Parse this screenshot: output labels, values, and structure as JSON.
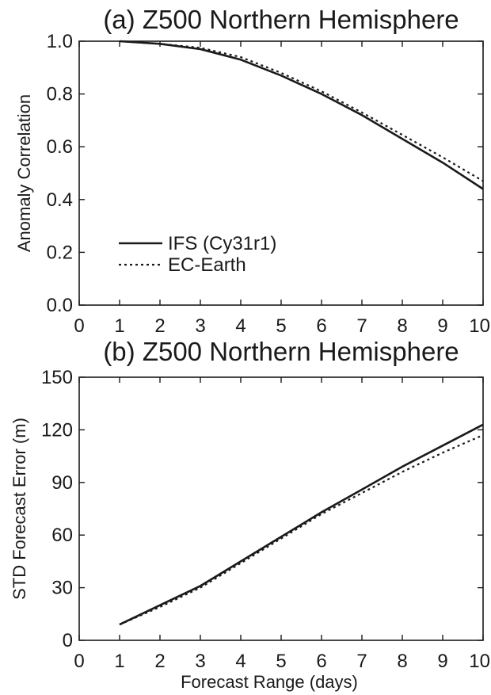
{
  "chart_data": [
    {
      "type": "line",
      "title": "(a) Z500 Northern Hemisphere",
      "xlabel": "",
      "ylabel": "Anomaly Correlation",
      "xlim": [
        0,
        10
      ],
      "ylim": [
        0.0,
        1.0
      ],
      "xticks": [
        0,
        1,
        2,
        3,
        4,
        5,
        6,
        7,
        8,
        9,
        10
      ],
      "xtick_labels": [
        "0",
        "1",
        "2",
        "3",
        "4",
        "5",
        "6",
        "7",
        "8",
        "9",
        "10"
      ],
      "yticks": [
        0.0,
        0.2,
        0.4,
        0.6,
        0.8,
        1.0
      ],
      "ytick_labels": [
        "0.0",
        "0.2",
        "0.4",
        "0.6",
        "0.8",
        "1.0"
      ],
      "grid": false,
      "legend": {
        "position": "bottom-left"
      },
      "x": [
        1,
        2,
        3,
        4,
        5,
        6,
        7,
        8,
        9,
        10
      ],
      "series": [
        {
          "name": "IFS (Cy31r1)",
          "style": "solid",
          "values": [
            1.0,
            0.99,
            0.97,
            0.93,
            0.87,
            0.8,
            0.72,
            0.63,
            0.54,
            0.44
          ]
        },
        {
          "name": "EC-Earth",
          "style": "dotted",
          "values": [
            1.0,
            0.99,
            0.975,
            0.94,
            0.88,
            0.81,
            0.73,
            0.645,
            0.56,
            0.47
          ]
        }
      ]
    },
    {
      "type": "line",
      "title": "(b) Z500 Northern Hemisphere",
      "xlabel": "Forecast Range (days)",
      "ylabel": "STD Forecast Error (m)",
      "xlim": [
        0,
        10
      ],
      "ylim": [
        0,
        150
      ],
      "xticks": [
        0,
        1,
        2,
        3,
        4,
        5,
        6,
        7,
        8,
        9,
        10
      ],
      "xtick_labels": [
        "0",
        "1",
        "2",
        "3",
        "4",
        "5",
        "6",
        "7",
        "8",
        "9",
        "10"
      ],
      "yticks": [
        0,
        30,
        60,
        90,
        120,
        150
      ],
      "ytick_labels": [
        "0",
        "30",
        "60",
        "90",
        "120",
        "150"
      ],
      "grid": false,
      "legend": null,
      "x": [
        1,
        2,
        3,
        4,
        5,
        6,
        7,
        8,
        9,
        10
      ],
      "series": [
        {
          "name": "IFS (Cy31r1)",
          "style": "solid",
          "values": [
            9,
            20,
            31,
            45,
            59,
            73,
            86,
            99,
            111,
            123
          ]
        },
        {
          "name": "EC-Earth",
          "style": "dotted",
          "values": [
            9,
            19,
            30,
            44,
            58,
            72,
            84,
            96,
            107,
            117
          ]
        }
      ]
    }
  ]
}
